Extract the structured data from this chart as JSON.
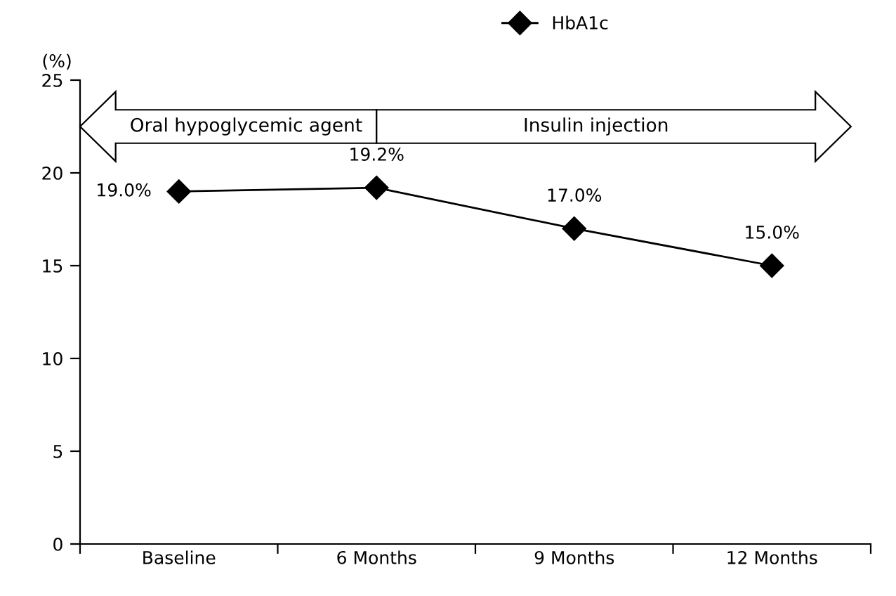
{
  "chart_data": {
    "type": "line",
    "ylabel": "(%)",
    "categories": [
      "Baseline",
      "6 Months",
      "9 Months",
      "12 Months"
    ],
    "series": [
      {
        "name": "HbA1c",
        "color": "#000000",
        "values": [
          19.0,
          19.2,
          17.0,
          15.0
        ],
        "value_labels": [
          "19.0%",
          "19.2%",
          "17.0%",
          "15.0%"
        ]
      }
    ],
    "ylim": [
      0,
      25
    ],
    "yticks": [
      0,
      5,
      10,
      15,
      20,
      25
    ],
    "annotations": [
      "Oral hypoglycemic agent",
      "Insulin injection"
    ],
    "marker": "diamond",
    "line_style": "solid",
    "legend": "top",
    "grid": false
  }
}
